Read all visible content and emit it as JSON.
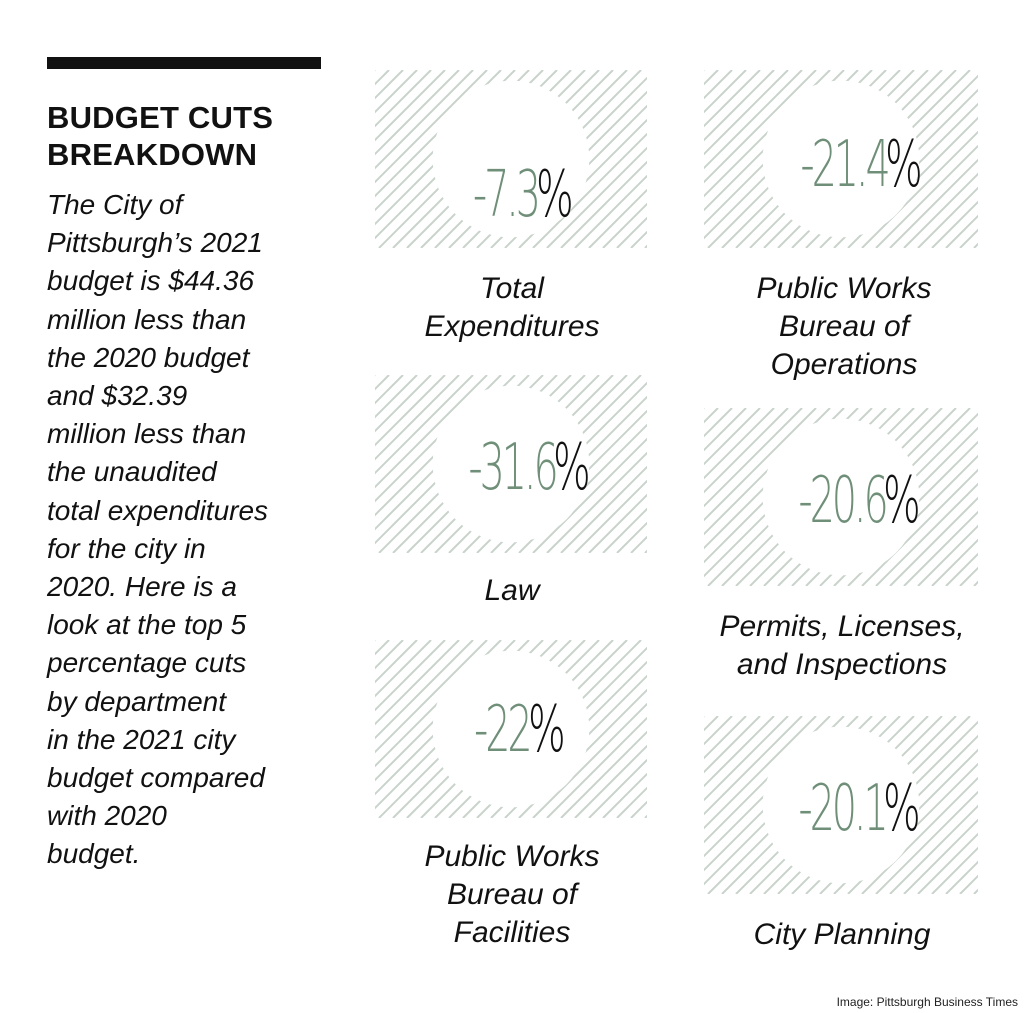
{
  "header": {
    "title_lines": [
      "BUDGET CUTS",
      "BREAKDOWN"
    ],
    "description_lines": [
      "The City of",
      "Pittsburgh’s 2021",
      "budget is $44.36",
      "million less than",
      "the 2020 budget",
      "and $32.39",
      "million less than",
      "the unaudited",
      "total expenditures",
      "for the city in",
      "2020. Here is a",
      "look at the top 5",
      "percentage cuts",
      "by department",
      "in the 2021 city",
      "budget compared",
      "with 2020",
      "budget."
    ]
  },
  "chart_data": {
    "type": "table",
    "unit": "%",
    "categories": [
      "Total Expenditures",
      "Public Works Bureau of Operations",
      "Law",
      "Permits, Licenses, and Inspections",
      "Public Works Bureau of Facilities",
      "City Planning"
    ],
    "values": [
      -7.3,
      -21.4,
      -31.6,
      -20.6,
      -22,
      -20.1
    ]
  },
  "stats": [
    {
      "value": "-7.3",
      "unit": "%",
      "label_lines": [
        "Total",
        "Expenditures"
      ]
    },
    {
      "value": "-21.4",
      "unit": "%",
      "label_lines": [
        "Public Works",
        "Bureau of",
        "Operations"
      ]
    },
    {
      "value": "-31.6",
      "unit": "%",
      "label_lines": [
        "Law"
      ]
    },
    {
      "value": "-20.6",
      "unit": "%",
      "label_lines": [
        "Permits, Licenses,",
        "and Inspections"
      ]
    },
    {
      "value": "-22",
      "unit": "%",
      "label_lines": [
        "Public Works",
        "Bureau of",
        "Facilities"
      ]
    },
    {
      "value": "-20.1",
      "unit": "%",
      "label_lines": [
        "City Planning"
      ]
    }
  ],
  "credit": "Image: Pittsburgh Business Times",
  "colors": {
    "value_green": "#6f8f79",
    "hatch": "#c9d3cb",
    "text": "#111111"
  }
}
